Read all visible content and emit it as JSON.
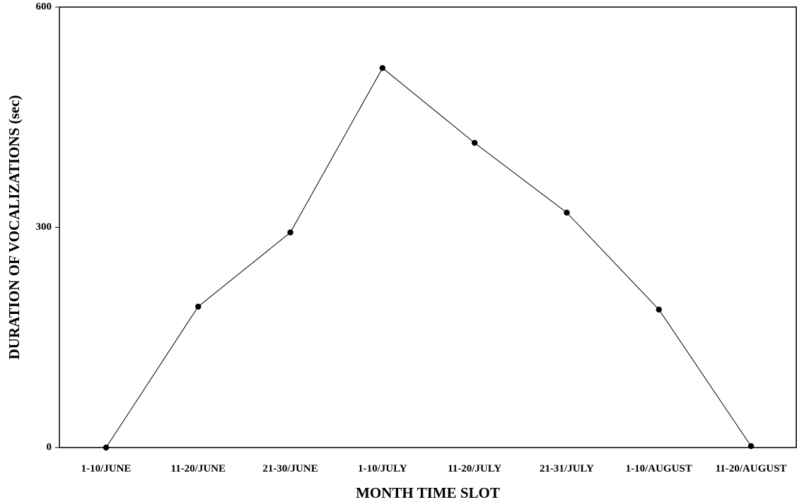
{
  "chart_data": {
    "type": "line",
    "title": "",
    "xlabel": "MONTH TIME SLOT",
    "ylabel": "DURATION OF VOCALIZATIONS (sec)",
    "categories": [
      "1-10/JUNE",
      "11-20/JUNE",
      "21-30/JUNE",
      "1-10/JULY",
      "11-20/JULY",
      "21-31/JULY",
      "1-10/AUGUST",
      "11-20/AUGUST"
    ],
    "series": [
      {
        "values": [
          0,
          192,
          293,
          517,
          415,
          320,
          188,
          2
        ]
      }
    ],
    "ylim": [
      0,
      600
    ],
    "yticks": [
      0,
      300,
      600
    ],
    "grid": false,
    "legend": "none",
    "colors": {
      "line": "#000000",
      "marker": "#000000",
      "axis": "#000000"
    }
  }
}
